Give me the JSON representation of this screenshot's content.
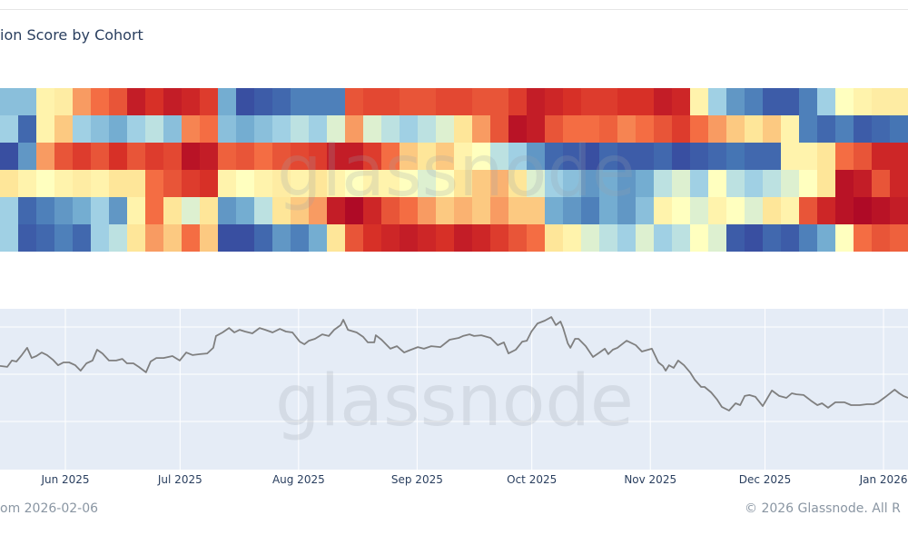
{
  "header": {
    "title": "ion Score by Cohort"
  },
  "footer": {
    "left": "om 2026-02-06",
    "right": "© 2026 Glassnode. All R"
  },
  "watermark": "glassnode",
  "colors": {
    "line": "#7f7f7f",
    "panel_bg": "#e5ecf6",
    "scale": [
      "#313695",
      "#4575b4",
      "#74add1",
      "#abd9e9",
      "#ffffbf",
      "#fee090",
      "#f46d43",
      "#d73027",
      "#a50026"
    ]
  },
  "chart_data": [
    {
      "type": "heatmap",
      "title": "ion Score by Cohort",
      "zrange": [
        -1,
        1
      ],
      "rows": [
        [
          -0.4,
          -0.4,
          0.1,
          0.15,
          0.4,
          0.5,
          0.6,
          0.85,
          0.75,
          0.85,
          0.8,
          0.7,
          -0.5,
          -0.9,
          -0.85,
          -0.8,
          -0.7,
          -0.7,
          -0.7,
          0.6,
          0.65,
          0.65,
          0.6,
          0.6,
          0.65,
          0.65,
          0.6,
          0.6,
          0.7,
          0.85,
          0.8,
          0.75,
          0.7,
          0.7,
          0.75,
          0.75,
          0.85,
          0.8,
          0.1,
          -0.3,
          -0.6,
          -0.7,
          -0.85,
          -0.85,
          -0.7,
          -0.3,
          0.0,
          0.1,
          0.15,
          0.15
        ],
        [
          -0.3,
          -0.8,
          0.1,
          0.3,
          -0.3,
          -0.4,
          -0.5,
          -0.3,
          -0.2,
          -0.4,
          0.45,
          0.5,
          -0.4,
          -0.5,
          -0.4,
          -0.3,
          -0.2,
          -0.3,
          -0.1,
          0.4,
          -0.1,
          -0.2,
          -0.3,
          -0.2,
          -0.1,
          0.2,
          0.4,
          0.6,
          0.9,
          0.85,
          0.6,
          0.5,
          0.5,
          0.55,
          0.45,
          0.5,
          0.6,
          0.7,
          0.5,
          0.4,
          0.3,
          0.2,
          0.3,
          0.1,
          -0.7,
          -0.8,
          -0.7,
          -0.85,
          -0.8,
          -0.75
        ],
        [
          -0.9,
          -0.6,
          0.4,
          0.6,
          0.7,
          0.6,
          0.75,
          0.6,
          0.7,
          0.65,
          0.9,
          0.85,
          0.55,
          0.6,
          0.5,
          0.6,
          0.65,
          0.7,
          0.85,
          0.85,
          0.7,
          0.5,
          0.3,
          0.2,
          0.3,
          0.1,
          0.0,
          -0.2,
          -0.3,
          -0.6,
          -0.8,
          -0.85,
          -0.9,
          -0.8,
          -0.85,
          -0.85,
          -0.8,
          -0.9,
          -0.85,
          -0.8,
          -0.75,
          -0.8,
          -0.8,
          0.1,
          0.1,
          0.2,
          0.5,
          0.6,
          0.8,
          0.8
        ],
        [
          0.2,
          0.1,
          0.0,
          0.1,
          0.15,
          0.1,
          0.2,
          0.2,
          0.5,
          0.6,
          0.7,
          0.75,
          0.1,
          0.0,
          0.1,
          0.15,
          0.1,
          0.2,
          0.1,
          0.0,
          0.1,
          0.1,
          0.0,
          -0.1,
          0.0,
          0.2,
          0.3,
          0.35,
          0.2,
          -0.1,
          -0.3,
          -0.4,
          -0.6,
          -0.5,
          -0.6,
          -0.5,
          -0.2,
          -0.1,
          -0.3,
          0.0,
          -0.2,
          -0.3,
          -0.2,
          -0.1,
          0.0,
          0.2,
          0.9,
          0.85,
          0.6,
          0.8
        ],
        [
          -0.3,
          -0.8,
          -0.7,
          -0.6,
          -0.5,
          -0.3,
          -0.6,
          0.1,
          0.5,
          0.2,
          -0.1,
          0.2,
          -0.6,
          -0.5,
          -0.2,
          0.2,
          0.3,
          0.4,
          0.85,
          0.95,
          0.8,
          0.6,
          0.5,
          0.4,
          0.3,
          0.35,
          0.3,
          0.4,
          0.3,
          0.3,
          -0.5,
          -0.6,
          -0.7,
          -0.5,
          -0.6,
          -0.4,
          0.1,
          0.0,
          -0.1,
          0.1,
          0.0,
          -0.1,
          0.2,
          0.1,
          0.6,
          0.8,
          0.9,
          0.95,
          0.9,
          0.85
        ],
        [
          -0.3,
          -0.85,
          -0.8,
          -0.7,
          -0.8,
          -0.3,
          -0.2,
          0.2,
          0.4,
          0.3,
          0.5,
          0.3,
          -0.9,
          -0.9,
          -0.8,
          -0.6,
          -0.7,
          -0.5,
          0.2,
          0.6,
          0.75,
          0.8,
          0.85,
          0.8,
          0.75,
          0.85,
          0.8,
          0.7,
          0.6,
          0.5,
          0.2,
          0.1,
          -0.1,
          -0.2,
          -0.3,
          -0.1,
          -0.3,
          -0.2,
          0.0,
          -0.1,
          -0.85,
          -0.9,
          -0.8,
          -0.85,
          -0.7,
          -0.5,
          0.0,
          0.5,
          0.6,
          0.55
        ]
      ]
    },
    {
      "type": "line",
      "xlabel": "",
      "ylabel": "",
      "x_unit": "days since 2025-06-01",
      "xlim": [
        -17.1,
        220.4
      ],
      "ylim": [
        59.6,
        127.7
      ],
      "y_gridlines": [
        80,
        100,
        120
      ],
      "x_ticks": [
        {
          "day": 0,
          "label": "Jun 2025"
        },
        {
          "day": 30,
          "label": "Jul 2025"
        },
        {
          "day": 61,
          "label": "Aug 2025"
        },
        {
          "day": 92,
          "label": "Sep 2025"
        },
        {
          "day": 122,
          "label": "Oct 2025"
        },
        {
          "day": 153,
          "label": "Nov 2025"
        },
        {
          "day": 183,
          "label": "Dec 2025"
        },
        {
          "day": 214,
          "label": "Jan 2026"
        }
      ],
      "points": [
        [
          -17.1,
          103.5
        ],
        [
          -15.2,
          103.1
        ],
        [
          -14,
          105.8
        ],
        [
          -12.8,
          105.4
        ],
        [
          -11.4,
          108.1
        ],
        [
          -10,
          111.2
        ],
        [
          -8.8,
          106.9
        ],
        [
          -7.6,
          107.7
        ],
        [
          -6.2,
          109.2
        ],
        [
          -4.8,
          108.1
        ],
        [
          -3.3,
          106.2
        ],
        [
          -1.9,
          103.8
        ],
        [
          -0.5,
          105
        ],
        [
          1,
          105
        ],
        [
          2.6,
          103.8
        ],
        [
          4,
          101.5
        ],
        [
          5.5,
          104.6
        ],
        [
          7.1,
          105.8
        ],
        [
          8.3,
          110.4
        ],
        [
          9.7,
          108.8
        ],
        [
          11.4,
          105.8
        ],
        [
          13.3,
          105.8
        ],
        [
          14.9,
          106.5
        ],
        [
          16.1,
          104.6
        ],
        [
          17.8,
          104.6
        ],
        [
          19.2,
          103.1
        ],
        [
          21.1,
          100.8
        ],
        [
          22.3,
          105.4
        ],
        [
          23.8,
          106.9
        ],
        [
          25.7,
          106.9
        ],
        [
          28,
          107.7
        ],
        [
          29.9,
          105.8
        ],
        [
          31.6,
          109.2
        ],
        [
          33.3,
          108.1
        ],
        [
          35.2,
          108.5
        ],
        [
          37.1,
          108.8
        ],
        [
          38.7,
          111.2
        ],
        [
          39.4,
          116.2
        ],
        [
          41.1,
          117.7
        ],
        [
          42.8,
          119.6
        ],
        [
          44.2,
          117.7
        ],
        [
          45.6,
          118.8
        ],
        [
          47,
          118.1
        ],
        [
          48.9,
          117.3
        ],
        [
          50.8,
          119.6
        ],
        [
          52.3,
          118.8
        ],
        [
          54.2,
          117.7
        ],
        [
          56.1,
          119.2
        ],
        [
          57.7,
          118.1
        ],
        [
          59.4,
          117.7
        ],
        [
          61.3,
          113.8
        ],
        [
          62.5,
          112.7
        ],
        [
          63.7,
          114.2
        ],
        [
          65.3,
          115
        ],
        [
          67.2,
          116.9
        ],
        [
          68.9,
          116.2
        ],
        [
          70.3,
          118.8
        ],
        [
          72,
          120.8
        ],
        [
          72.7,
          123.1
        ],
        [
          73.9,
          118.8
        ],
        [
          76.2,
          117.7
        ],
        [
          77.9,
          115.8
        ],
        [
          79.1,
          113.5
        ],
        [
          80.8,
          113.5
        ],
        [
          81.2,
          116.5
        ],
        [
          82.7,
          114.6
        ],
        [
          85,
          110.8
        ],
        [
          86.7,
          111.9
        ],
        [
          88.6,
          109.2
        ],
        [
          89.8,
          110
        ],
        [
          92.2,
          111.5
        ],
        [
          93.8,
          110.8
        ],
        [
          95.7,
          111.9
        ],
        [
          98.1,
          111.5
        ],
        [
          100.5,
          114.6
        ],
        [
          102.9,
          115.4
        ],
        [
          104,
          116.2
        ],
        [
          105.7,
          116.9
        ],
        [
          106.9,
          116.2
        ],
        [
          108.8,
          116.5
        ],
        [
          111.2,
          115.4
        ],
        [
          113.1,
          112.3
        ],
        [
          114.7,
          113.5
        ],
        [
          115.9,
          108.8
        ],
        [
          117.8,
          110.4
        ],
        [
          119.5,
          113.8
        ],
        [
          120.7,
          114.2
        ],
        [
          121.9,
          118.1
        ],
        [
          123.5,
          121.5
        ],
        [
          125.4,
          122.7
        ],
        [
          127.1,
          124.2
        ],
        [
          128.3,
          120.8
        ],
        [
          129.5,
          122.3
        ],
        [
          130.2,
          119.6
        ],
        [
          131.4,
          113.1
        ],
        [
          132.1,
          111.2
        ],
        [
          133.3,
          115
        ],
        [
          134.2,
          115
        ],
        [
          136.1,
          111.9
        ],
        [
          138,
          107.3
        ],
        [
          139.7,
          109.2
        ],
        [
          141.1,
          110.8
        ],
        [
          142,
          108.5
        ],
        [
          143.2,
          110.4
        ],
        [
          144.4,
          111.2
        ],
        [
          146.8,
          114.2
        ],
        [
          149.2,
          112.3
        ],
        [
          150.8,
          109.6
        ],
        [
          153.4,
          110.8
        ],
        [
          155.1,
          105
        ],
        [
          156.3,
          103.5
        ],
        [
          157,
          101.5
        ],
        [
          157.9,
          103.8
        ],
        [
          159.1,
          102.7
        ],
        [
          160.3,
          105.8
        ],
        [
          161.8,
          103.8
        ],
        [
          163.4,
          100.8
        ],
        [
          164.6,
          97.7
        ],
        [
          166.3,
          94.6
        ],
        [
          167.2,
          94.6
        ],
        [
          168.9,
          92.3
        ],
        [
          170.5,
          89.2
        ],
        [
          171.7,
          86.2
        ],
        [
          173.6,
          84.6
        ],
        [
          175.3,
          87.7
        ],
        [
          176.5,
          86.9
        ],
        [
          177.7,
          90.8
        ],
        [
          178.9,
          91.2
        ],
        [
          180.5,
          90.4
        ],
        [
          182.4,
          86.5
        ],
        [
          184.8,
          93.1
        ],
        [
          186.7,
          90.8
        ],
        [
          188.6,
          90
        ],
        [
          190,
          91.9
        ],
        [
          191.2,
          91.5
        ],
        [
          193.1,
          91.2
        ],
        [
          195,
          88.8
        ],
        [
          196.7,
          86.9
        ],
        [
          197.9,
          87.7
        ],
        [
          199.5,
          85.8
        ],
        [
          201.4,
          88.1
        ],
        [
          203.8,
          88.1
        ],
        [
          205.5,
          86.9
        ],
        [
          207.8,
          86.9
        ],
        [
          209.7,
          87.3
        ],
        [
          211.4,
          87.3
        ],
        [
          212.6,
          88.1
        ],
        [
          214.5,
          90.4
        ],
        [
          216.9,
          93.5
        ],
        [
          218.1,
          91.9
        ],
        [
          219.2,
          90.8
        ],
        [
          220.4,
          90
        ]
      ]
    }
  ]
}
